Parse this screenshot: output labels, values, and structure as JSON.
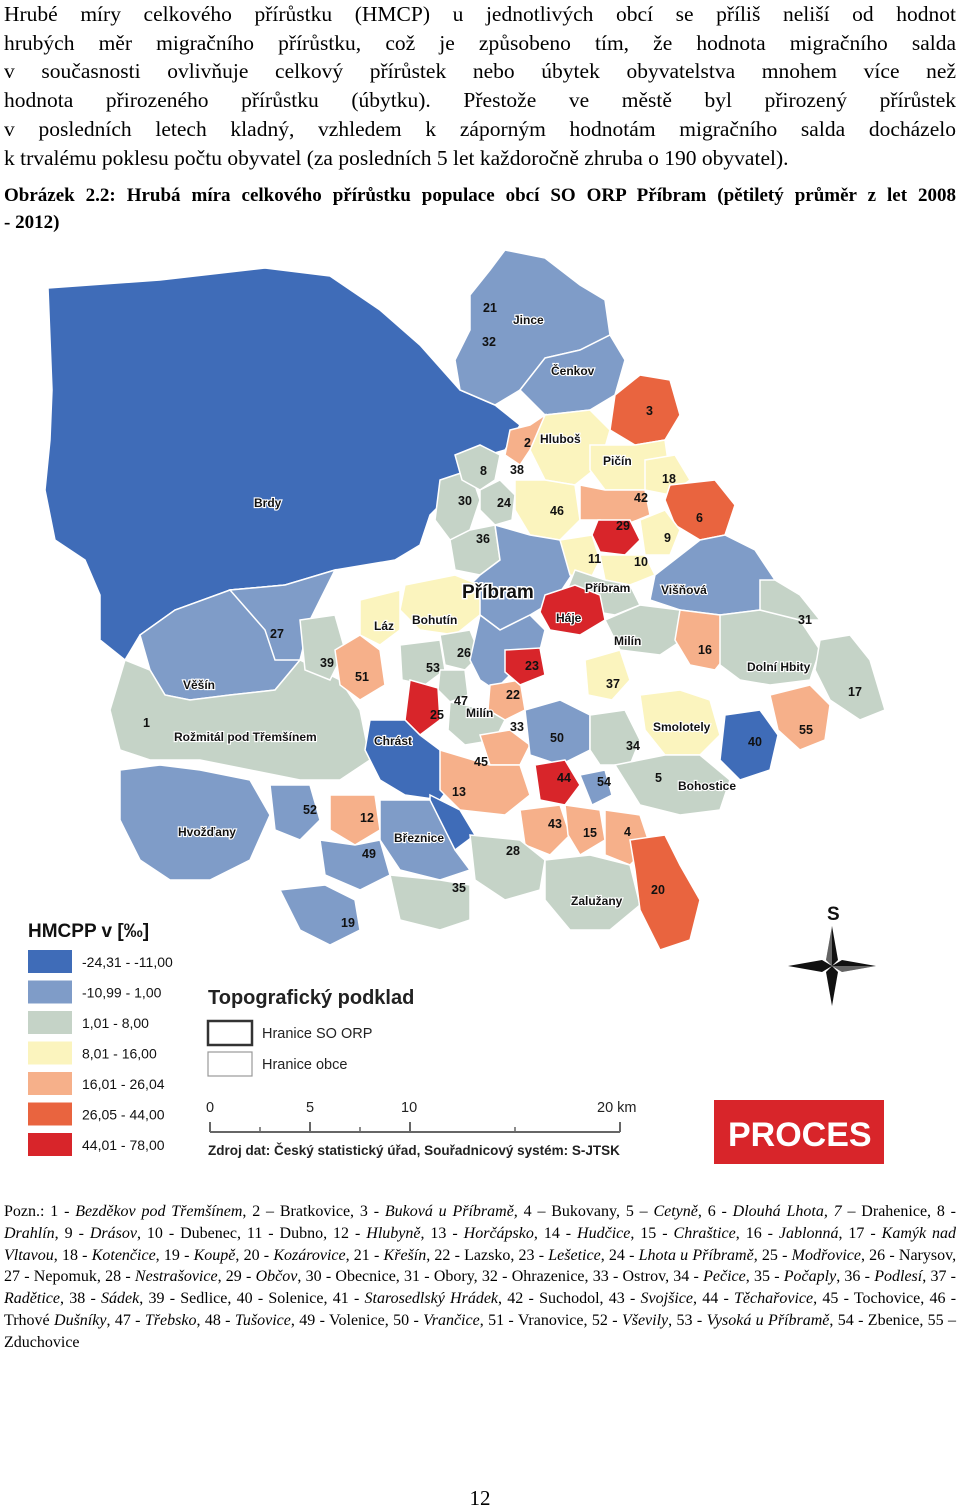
{
  "intro_lines": [
    "Hrubé míry celkového přírůstku (HMCP) u jednotlivých obcí se příliš neliší od hodnot",
    "hrubých měr migračního přírůstku, což je způsobeno tím, že hodnota migračního salda",
    "v současnosti ovlivňuje celkový přírůstek nebo úbytek obyvatelstva mnohem více než",
    "hodnota přirozeného přírůstku (úbytku). Přestože ve městě byl přirozený přírůstek",
    "v posledních letech kladný, vzhledem k záporným hodnotám migračního salda docházelo",
    "k trvalému poklesu počtu obyvatel (za posledních 5 let každoročně zhruba o 190 obyvatel)."
  ],
  "caption": {
    "line1": "Obrázek 2.2: Hrubá míra celkového přírůstku populace obcí SO ORP Příbram (pětiletý průměr z let 2008",
    "line2": "- 2012)"
  },
  "map": {
    "legend_title": "HMCPP v [‰]",
    "classes": [
      {
        "label": "-24,31 - -11,00",
        "color": "#3f6cb8"
      },
      {
        "label": "-10,99 - 1,00",
        "color": "#7f9cc8"
      },
      {
        "label": "1,01 - 8,00",
        "color": "#c5d3c7"
      },
      {
        "label": "8,01 - 16,00",
        "color": "#fbf4be"
      },
      {
        "label": "16,01 - 26,04",
        "color": "#f6b08a"
      },
      {
        "label": "26,05 - 44,00",
        "color": "#e9643f"
      },
      {
        "label": "44,01 - 78,00",
        "color": "#d8252a"
      }
    ],
    "topo_title": "Topografický podklad",
    "topo_items": [
      "Hranice SO ORP",
      "Hranice obce"
    ],
    "scale_labels": [
      "0",
      "5",
      "10",
      "20 km"
    ],
    "source": "Zdroj dat: Český statistický úřad, Souřadnicový systém: S-JTSK",
    "logo": "PROCES",
    "north": "S",
    "numbers": [
      "21",
      "32",
      "3",
      "2",
      "8",
      "38",
      "18",
      "30",
      "24",
      "46",
      "42",
      "6",
      "29",
      "9",
      "36",
      "11",
      "10",
      "27",
      "39",
      "26",
      "53",
      "51",
      "16",
      "31",
      "17",
      "47",
      "25",
      "22",
      "23",
      "37",
      "40",
      "55",
      "33",
      "50",
      "34",
      "45",
      "44",
      "54",
      "5",
      "13",
      "43",
      "15",
      "4",
      "12",
      "52",
      "49",
      "28",
      "35",
      "20",
      "19",
      "1"
    ],
    "names": [
      "Jince",
      "Čenkov",
      "Hluboš",
      "Pičín",
      "Brdy",
      "Příbram",
      "Příbram",
      "Višňová",
      "Bohutín",
      "Láz",
      "Háje",
      "Milín",
      "Věšín",
      "Dolní Hbity",
      "Rožmitál pod Třemšínem",
      "Chrást",
      "Milín",
      "Smolotely",
      "Bohostice",
      "Hvožďany",
      "Březnice",
      "Zalužany"
    ]
  },
  "note": {
    "intro": "Pozn.: ",
    "segments": [
      {
        "t": "1 - "
      },
      {
        "t": "Bezděkov pod Třemšínem",
        "i": true
      },
      {
        "t": ", 2 – Bratkovice, 3 - "
      },
      {
        "t": "Buková u Příbramě,",
        "i": true
      },
      {
        "t": " 4 – Bukovany, 5 – "
      },
      {
        "t": "Cetyně",
        "i": true
      },
      {
        "t": ", 6 - "
      },
      {
        "t": "Dlouhá Lhota, 7 –",
        "i": true
      },
      {
        "t": " Drahenice, 8 - "
      },
      {
        "t": "Drahlín",
        "i": true
      },
      {
        "t": ", 9 - "
      },
      {
        "t": "Drásov",
        "i": true
      },
      {
        "t": ", 10 - Dubenec, 11 - Dubno, 12 - "
      },
      {
        "t": "Hlubyně",
        "i": true
      },
      {
        "t": ", 13 - "
      },
      {
        "t": "Horčápsko",
        "i": true
      },
      {
        "t": ", 14 - "
      },
      {
        "t": "Hudčice",
        "i": true
      },
      {
        "t": ", 15 - "
      },
      {
        "t": "Chraštice",
        "i": true
      },
      {
        "t": ", 16 - "
      },
      {
        "t": "Jablonná",
        "i": true
      },
      {
        "t": ", 17 - "
      },
      {
        "t": "Kamýk nad Vltavou",
        "i": true
      },
      {
        "t": ", 18 - "
      },
      {
        "t": "Kotenčice",
        "i": true
      },
      {
        "t": ", 19 - "
      },
      {
        "t": "Koupě",
        "i": true
      },
      {
        "t": ", 20 - "
      },
      {
        "t": "Kozárovice",
        "i": true
      },
      {
        "t": ", 21 - "
      },
      {
        "t": "Křešín",
        "i": true
      },
      {
        "t": ", 22 - Lazsko, 23 - "
      },
      {
        "t": "Lešetice",
        "i": true
      },
      {
        "t": ", 24 - "
      },
      {
        "t": "Lhota u Příbramě",
        "i": true
      },
      {
        "t": ", 25 - "
      },
      {
        "t": "Modřovice",
        "i": true
      },
      {
        "t": ", 26 - Narysov, 27 - Nepomuk, 28 - "
      },
      {
        "t": "Nestrašovice",
        "i": true
      },
      {
        "t": ", 29 - "
      },
      {
        "t": "Občov",
        "i": true
      },
      {
        "t": ", 30 - Obecnice, 31 - Obory, 32 - Ohrazenice, 33 - Ostrov, 34 - "
      },
      {
        "t": "Pečice",
        "i": true
      },
      {
        "t": ", 35 - "
      },
      {
        "t": "Počaply",
        "i": true
      },
      {
        "t": ", 36 - "
      },
      {
        "t": "Podlesí",
        "i": true
      },
      {
        "t": ", 37 - "
      },
      {
        "t": "Radětice",
        "i": true
      },
      {
        "t": ", 38 - "
      },
      {
        "t": "Sádek",
        "i": true
      },
      {
        "t": ", 39 - Sedlice, 40 - Solenice, 41 - "
      },
      {
        "t": "Starosedlský Hrádek",
        "i": true
      },
      {
        "t": ", 42 - Suchodol, 43 - "
      },
      {
        "t": "Svojšice",
        "i": true
      },
      {
        "t": ", 44 - "
      },
      {
        "t": "Těchařovice",
        "i": true
      },
      {
        "t": ", 45 - Tochovice, 46 - Trhové "
      },
      {
        "t": "Dušníky",
        "i": true
      },
      {
        "t": ", 47 - "
      },
      {
        "t": "Třebsko",
        "i": true
      },
      {
        "t": ", 48 - "
      },
      {
        "t": "Tušovice",
        "i": true
      },
      {
        "t": ", 49 - Volenice, 50 - "
      },
      {
        "t": "Vrančice",
        "i": true
      },
      {
        "t": ", 51 - Vranovice, 52 - "
      },
      {
        "t": "Vševily",
        "i": true
      },
      {
        "t": ", 53 - "
      },
      {
        "t": "Vysoká u Příbramě",
        "i": true
      },
      {
        "t": ", 54 - Zbenice, 55 – Zduchovice"
      }
    ]
  },
  "page_number": "12"
}
